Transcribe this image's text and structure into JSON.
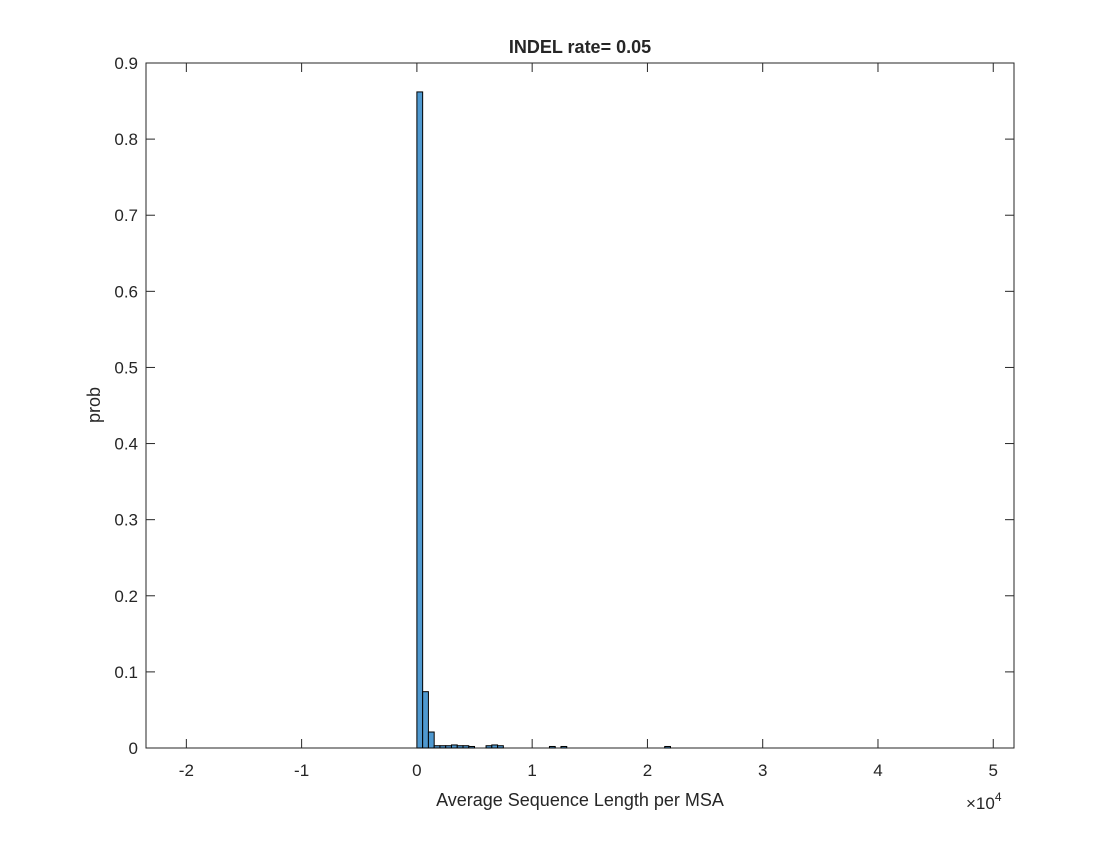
{
  "chart_data": {
    "type": "bar",
    "title": "INDEL rate= 0.05",
    "xlabel": "Average Sequence Length per MSA",
    "ylabel": "prob",
    "x_exponent_label": "×10",
    "x_exponent_power": "4",
    "xlim": [
      -2.35,
      5.18
    ],
    "ylim": [
      0,
      0.9
    ],
    "xticks": [
      -2,
      -1,
      0,
      1,
      2,
      3,
      4,
      5
    ],
    "xtick_labels": [
      "-2",
      "-1",
      "0",
      "1",
      "2",
      "3",
      "4",
      "5"
    ],
    "yticks": [
      0,
      0.1,
      0.2,
      0.3,
      0.4,
      0.5,
      0.6,
      0.7,
      0.8,
      0.9
    ],
    "ytick_labels": [
      "0",
      "0.1",
      "0.2",
      "0.3",
      "0.4",
      "0.5",
      "0.6",
      "0.7",
      "0.8",
      "0.9"
    ],
    "bin_width": 0.05,
    "bins_start": [
      0.0,
      0.05,
      0.1,
      0.15,
      0.2,
      0.25,
      0.3,
      0.35,
      0.4,
      0.45,
      0.6,
      0.65,
      0.7,
      1.15,
      1.25,
      2.15
    ],
    "values": [
      0.862,
      0.074,
      0.021,
      0.003,
      0.003,
      0.003,
      0.004,
      0.003,
      0.003,
      0.002,
      0.003,
      0.004,
      0.003,
      0.002,
      0.002,
      0.002
    ],
    "bar_color": "#4f99d0",
    "edge_color": "#000000",
    "grid": false,
    "legend": "none"
  }
}
